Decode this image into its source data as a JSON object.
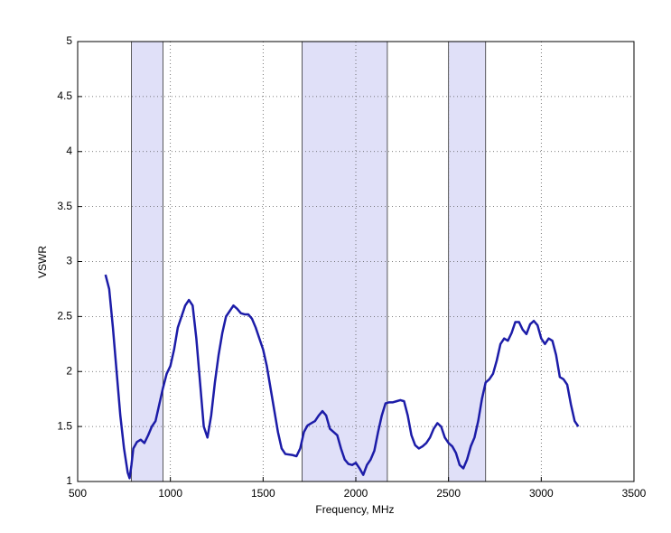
{
  "chart_data": {
    "type": "line",
    "xlabel": "Frequency, MHz",
    "ylabel": "VSWR",
    "xlim": [
      500,
      3500
    ],
    "ylim": [
      1,
      5
    ],
    "xticks": [
      500,
      1000,
      1500,
      2000,
      2500,
      3000,
      3500
    ],
    "yticks": [
      1,
      1.5,
      2,
      2.5,
      3,
      3.5,
      4,
      4.5,
      5
    ],
    "grid": true,
    "band_color": "#e0e0f8",
    "bands": [
      [
        790,
        960
      ],
      [
        1710,
        2170
      ],
      [
        2500,
        2700
      ]
    ],
    "x": [
      650,
      670,
      690,
      710,
      730,
      750,
      770,
      780,
      790,
      800,
      820,
      840,
      860,
      880,
      900,
      920,
      940,
      960,
      980,
      1000,
      1020,
      1040,
      1060,
      1080,
      1100,
      1120,
      1140,
      1160,
      1180,
      1200,
      1220,
      1240,
      1260,
      1280,
      1300,
      1340,
      1360,
      1380,
      1400,
      1420,
      1440,
      1460,
      1480,
      1500,
      1520,
      1540,
      1560,
      1580,
      1600,
      1620,
      1660,
      1680,
      1700,
      1720,
      1740,
      1760,
      1780,
      1800,
      1820,
      1840,
      1860,
      1880,
      1900,
      1920,
      1940,
      1960,
      1980,
      2000,
      2020,
      2040,
      2060,
      2080,
      2100,
      2120,
      2140,
      2160,
      2180,
      2200,
      2220,
      2240,
      2260,
      2280,
      2300,
      2320,
      2340,
      2360,
      2380,
      2400,
      2420,
      2440,
      2460,
      2480,
      2500,
      2520,
      2540,
      2560,
      2580,
      2600,
      2620,
      2640,
      2660,
      2680,
      2700,
      2720,
      2740,
      2760,
      2780,
      2800,
      2820,
      2840,
      2860,
      2880,
      2900,
      2920,
      2940,
      2960,
      2980,
      3000,
      3020,
      3040,
      3060,
      3080,
      3100,
      3120,
      3140,
      3160,
      3180,
      3200
    ],
    "series": [
      {
        "color": "#1c1ca8",
        "values": [
          2.88,
          2.75,
          2.4,
          2.0,
          1.6,
          1.3,
          1.08,
          1.03,
          1.15,
          1.3,
          1.36,
          1.38,
          1.35,
          1.42,
          1.5,
          1.55,
          1.7,
          1.85,
          1.98,
          2.05,
          2.2,
          2.4,
          2.5,
          2.6,
          2.65,
          2.6,
          2.3,
          1.9,
          1.5,
          1.4,
          1.6,
          1.9,
          2.15,
          2.35,
          2.5,
          2.6,
          2.57,
          2.53,
          2.52,
          2.52,
          2.48,
          2.4,
          2.3,
          2.2,
          2.05,
          1.85,
          1.65,
          1.45,
          1.3,
          1.25,
          1.24,
          1.23,
          1.3,
          1.45,
          1.51,
          1.53,
          1.55,
          1.6,
          1.64,
          1.6,
          1.48,
          1.45,
          1.42,
          1.3,
          1.2,
          1.16,
          1.15,
          1.17,
          1.12,
          1.06,
          1.15,
          1.2,
          1.28,
          1.45,
          1.6,
          1.71,
          1.72,
          1.72,
          1.73,
          1.74,
          1.73,
          1.6,
          1.42,
          1.33,
          1.3,
          1.32,
          1.35,
          1.4,
          1.48,
          1.53,
          1.5,
          1.4,
          1.35,
          1.32,
          1.26,
          1.15,
          1.12,
          1.2,
          1.32,
          1.4,
          1.55,
          1.75,
          1.9,
          1.93,
          1.98,
          2.1,
          2.25,
          2.3,
          2.28,
          2.35,
          2.45,
          2.45,
          2.38,
          2.34,
          2.43,
          2.46,
          2.42,
          2.3,
          2.25,
          2.3,
          2.28,
          2.15,
          1.95,
          1.93,
          1.88,
          1.7,
          1.55,
          1.5
        ]
      }
    ]
  }
}
